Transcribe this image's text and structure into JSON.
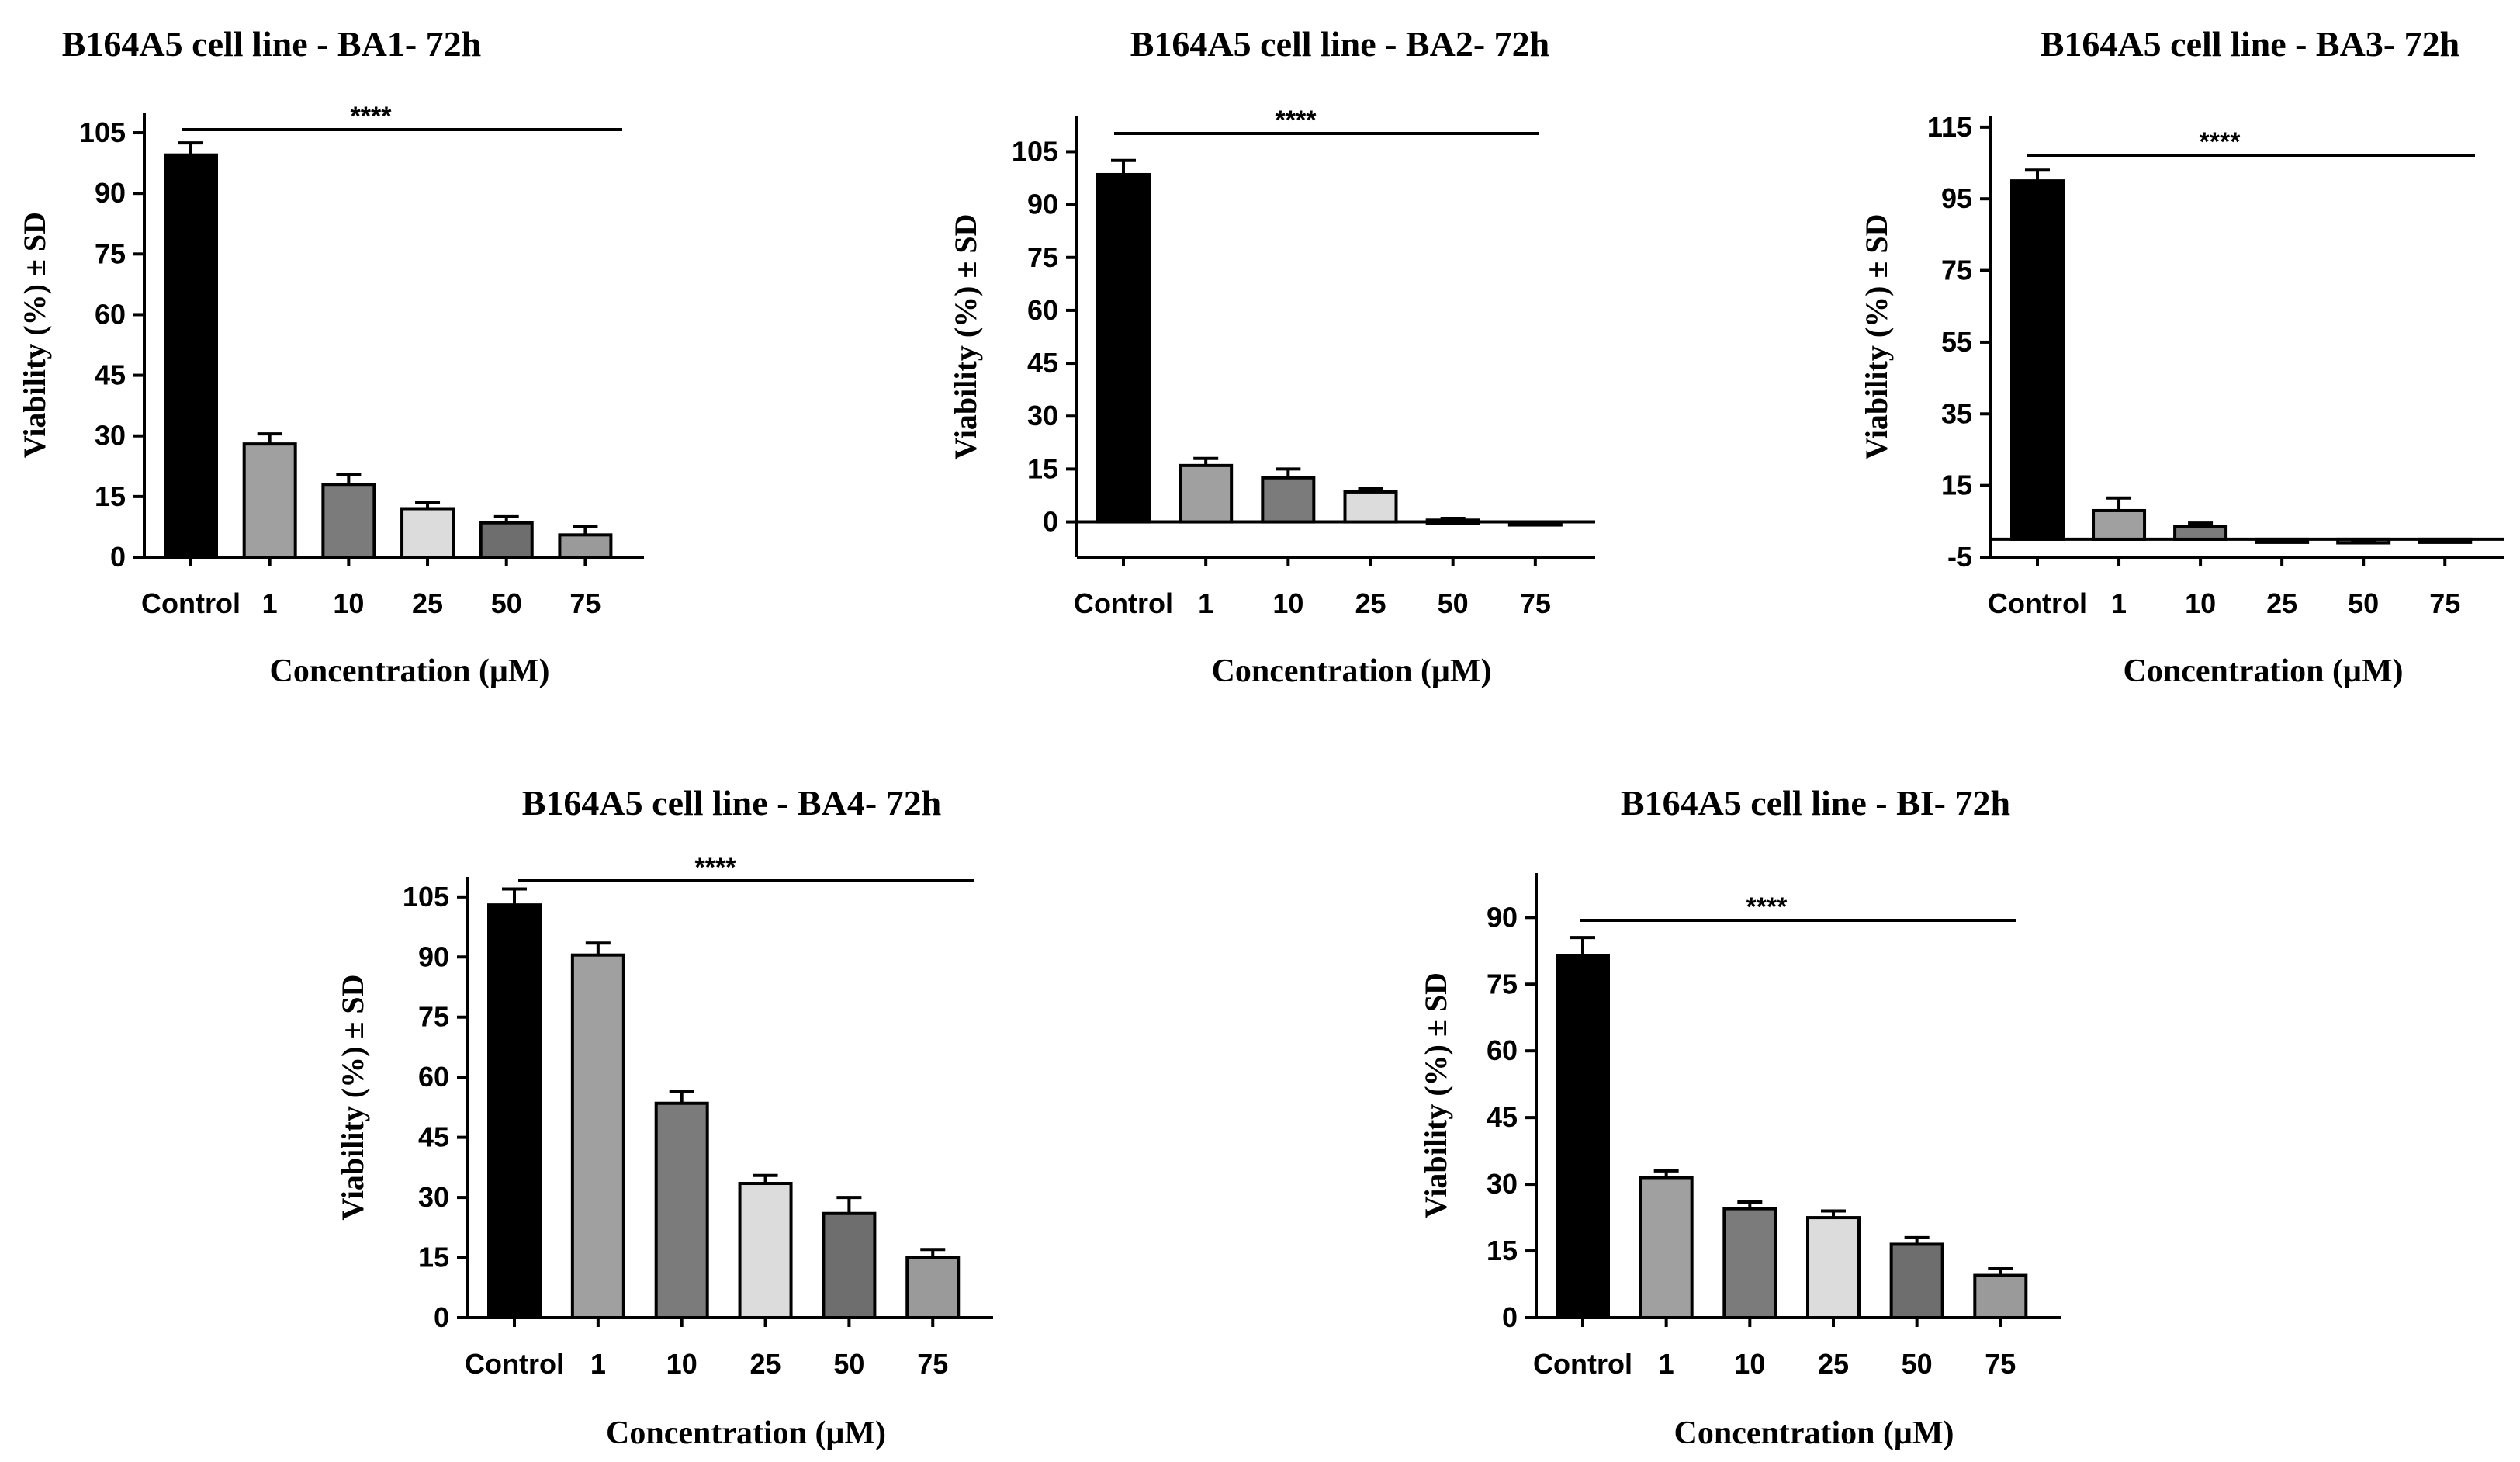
{
  "chart_data": [
    {
      "id": "ba1",
      "type": "bar",
      "title": "B164A5 cell line - BA1- 72h",
      "xlabel": "Concentration (μM)",
      "ylabel": "Viability (%) ± SD",
      "categories": [
        "Control",
        "1",
        "10",
        "25",
        "50",
        "75"
      ],
      "values": [
        99.5,
        28,
        18,
        12,
        8.5,
        5.5
      ],
      "errors": [
        3,
        2.5,
        2.5,
        1.5,
        1.5,
        2
      ],
      "ylim": [
        0,
        110
      ],
      "yticks": [
        0,
        15,
        30,
        45,
        60,
        75,
        90,
        105
      ],
      "significance": "****",
      "bar_colors": [
        "#000000",
        "#a0a0a0",
        "#7b7b7b",
        "#dcdcdc",
        "#6e6e6e",
        "#9a9a9a"
      ]
    },
    {
      "id": "ba2",
      "type": "bar",
      "title": "B164A5 cell line - BA2- 72h",
      "xlabel": "Concentration (μM)",
      "ylabel": "Viability (%) ± SD",
      "categories": [
        "Control",
        "1",
        "10",
        "25",
        "50",
        "75"
      ],
      "values": [
        98.5,
        16,
        12.5,
        8.5,
        0.5,
        -0.8
      ],
      "errors": [
        4,
        2,
        2.5,
        1,
        0.5,
        0.5
      ],
      "ylim": [
        -10,
        115
      ],
      "yticks": [
        0,
        15,
        30,
        45,
        60,
        75,
        90,
        105
      ],
      "significance": "****",
      "bar_colors": [
        "#000000",
        "#a0a0a0",
        "#7b7b7b",
        "#dcdcdc",
        "#6e6e6e",
        "#9a9a9a"
      ]
    },
    {
      "id": "ba3",
      "type": "bar",
      "title": "B164A5 cell line - BA3- 72h",
      "xlabel": "Concentration (μM)",
      "ylabel": "Viability (%) ± SD",
      "categories": [
        "Control",
        "1",
        "10",
        "25",
        "50",
        "75"
      ],
      "values": [
        100,
        8,
        3.5,
        -0.8,
        -1,
        -0.8
      ],
      "errors": [
        3,
        3.5,
        1,
        0.5,
        0.5,
        0.5
      ],
      "ylim": [
        -5,
        118
      ],
      "yticks": [
        -5,
        15,
        35,
        55,
        75,
        95,
        115
      ],
      "significance": "****",
      "bar_colors": [
        "#000000",
        "#a0a0a0",
        "#7b7b7b",
        "#dcdcdc",
        "#6e6e6e",
        "#9a9a9a"
      ]
    },
    {
      "id": "ba4",
      "type": "bar",
      "title": "B164A5 cell line - BA4- 72h",
      "xlabel": "Concentration (μM)",
      "ylabel": "Viability (%) ± SD",
      "categories": [
        "Control",
        "1",
        "10",
        "25",
        "50",
        "75"
      ],
      "values": [
        103,
        90.5,
        53.5,
        33.5,
        26,
        15
      ],
      "errors": [
        4,
        3,
        3,
        2,
        4,
        2
      ],
      "ylim": [
        0,
        110
      ],
      "yticks": [
        0,
        15,
        30,
        45,
        60,
        75,
        90,
        105
      ],
      "significance": "****",
      "bar_colors": [
        "#000000",
        "#a0a0a0",
        "#7b7b7b",
        "#dcdcdc",
        "#6e6e6e",
        "#9a9a9a"
      ]
    },
    {
      "id": "bi",
      "type": "bar",
      "title": "B164A5 cell line - BI- 72h",
      "xlabel": "Concentration (μM)",
      "ylabel": "Viability (%) ± SD",
      "categories": [
        "Control",
        "1",
        "10",
        "25",
        "50",
        "75"
      ],
      "values": [
        81.5,
        31.5,
        24.5,
        22.5,
        16.5,
        9.5
      ],
      "errors": [
        4,
        1.5,
        1.5,
        1.5,
        1.5,
        1.5
      ],
      "ylim": [
        0,
        100
      ],
      "yticks": [
        0,
        15,
        30,
        45,
        60,
        75,
        90
      ],
      "significance": "****",
      "bar_colors": [
        "#000000",
        "#a0a0a0",
        "#7b7b7b",
        "#dcdcdc",
        "#6e6e6e",
        "#9a9a9a"
      ]
    }
  ]
}
